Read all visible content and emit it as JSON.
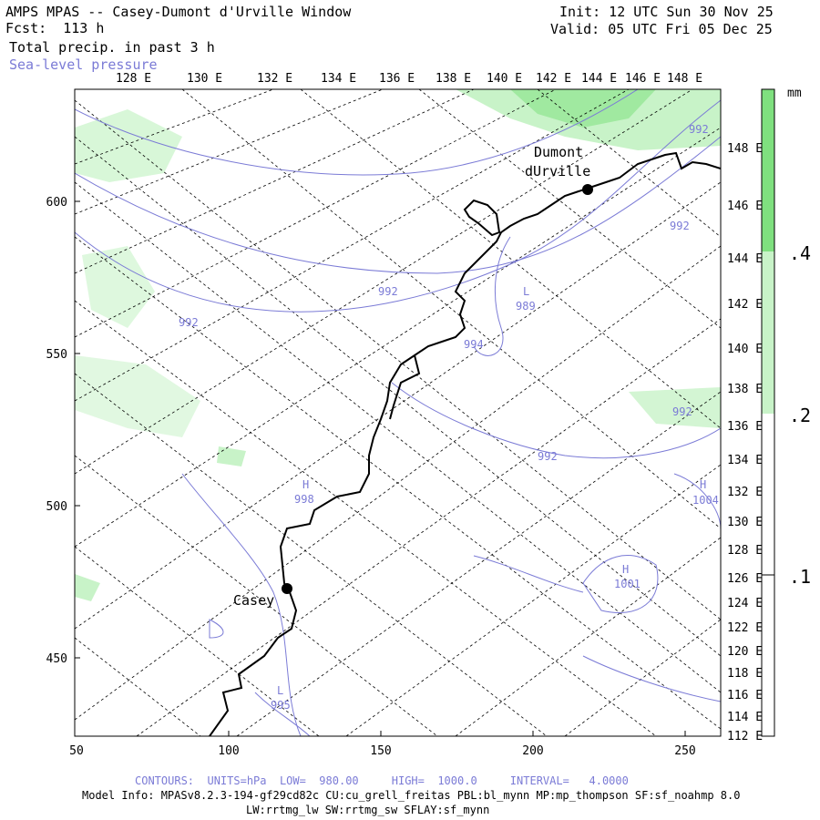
{
  "header": {
    "title": "AMPS MPAS -- Casey-Dumont d'Urville Window",
    "forecast": "Fcst:  113 h",
    "field1": "Total precip. in past 3 h",
    "field2": "Sea-level pressure",
    "init": "Init: 12 UTC Sun 30 Nov 25",
    "valid": "Valid: 05 UTC Fri 05 Dec 25"
  },
  "axes": {
    "top_labels": [
      "128 E",
      "130 E",
      "132 E",
      "134 E",
      "136 E",
      "138 E",
      "140 E",
      "142 E",
      "144 E",
      "146 E",
      "148 E"
    ],
    "right_labels": [
      "148 E",
      "146 E",
      "144 E",
      "142 E",
      "140 E",
      "138 E",
      "136 E",
      "134 E",
      "132 E",
      "130 E",
      "128 E",
      "126 E",
      "124 E",
      "122 E",
      "120 E",
      "118 E",
      "116 E",
      "114 E",
      "112 E"
    ],
    "left_values": [
      "600",
      "550",
      "500",
      "450"
    ],
    "bottom_values": [
      "50",
      "100",
      "150",
      "200",
      "250"
    ]
  },
  "colorbar": {
    "unit": "mm",
    "labels": [
      ".4",
      ".2",
      ".1"
    ],
    "colors": [
      "#7fe07f",
      "#c8f3c8",
      "#ffffff"
    ]
  },
  "map_labels": {
    "stations": [
      "Dumont",
      "dUrville",
      "Casey"
    ],
    "pressure_labels": [
      "992",
      "992",
      "992",
      "992",
      "992",
      "992",
      "994",
      "L",
      "989",
      "H",
      "998",
      "H",
      "1004",
      "H",
      "1001",
      "L",
      "995"
    ]
  },
  "footer": {
    "contours": "CONTOURS:  UNITS=hPa  LOW=  980.00     HIGH=  1000.0     INTERVAL=   4.0000",
    "model_info": "Model Info: MPASv8.2.3-194-gf29cd82c CU:cu_grell_freitas PBL:bl_mynn MP:mp_thompson SF:sf_noahmp 8.0",
    "physics": "LW:rrtmg_lw SW:rrtmg_sw SFLAY:sf_mynn"
  },
  "colors": {
    "pressure_contour": "#7b7bd6",
    "precip_light": "#c8f3c8",
    "precip_mid": "#7fe07f",
    "coastline": "#000000"
  }
}
